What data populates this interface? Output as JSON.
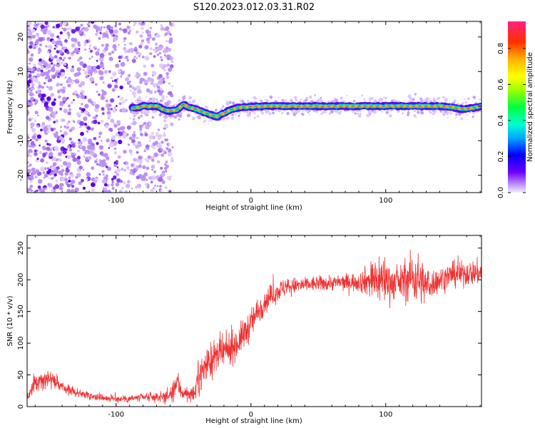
{
  "figure": {
    "title": "S120.2023.012.03.31.R02"
  },
  "chart_data": [
    {
      "type": "heatmap",
      "xlabel": "Height of straight line (km)",
      "ylabel": "Frequency (Hz)",
      "xlim": [
        -166,
        171
      ],
      "ylim": [
        -25,
        24.5
      ],
      "xticks": [
        -100,
        0,
        100
      ],
      "yticks": [
        -20,
        -10,
        0,
        10,
        20
      ],
      "grid": false,
      "trace": {
        "x": [
          -85,
          -80,
          -75,
          -70,
          -65,
          -60,
          -55,
          -50,
          -45,
          -40,
          -35,
          -30,
          -25,
          -20,
          -15,
          -10,
          -5,
          0,
          10,
          20,
          40,
          60,
          80,
          100,
          120,
          140,
          150,
          155,
          160,
          165,
          171
        ],
        "y": [
          -0.5,
          0,
          0,
          0,
          -1,
          -1.5,
          -1,
          0.5,
          -0.5,
          -1,
          -1.8,
          -2.5,
          -3,
          -2,
          -1,
          -0.5,
          -0.3,
          -0.2,
          0,
          0,
          0,
          0,
          0,
          0,
          0,
          0,
          -0.3,
          -0.8,
          -0.8,
          -0.5,
          0
        ]
      },
      "colorbar": {
        "label": "Normalized spectral amplitude",
        "range": [
          0,
          0.95
        ],
        "ticks": [
          0.0,
          0.2,
          0.4,
          0.6,
          0.8
        ]
      }
    },
    {
      "type": "line",
      "xlabel": "Height of straight line (km)",
      "ylabel": "SNR (10 * v/v)",
      "xlim": [
        -166,
        171
      ],
      "ylim": [
        0,
        270
      ],
      "xticks": [
        -100,
        0,
        100
      ],
      "yticks": [
        0,
        50,
        100,
        150,
        200,
        250
      ],
      "grid": false,
      "color": "#ee3333",
      "series": [
        {
          "envelope": {
            "x": [
              -166,
              -160,
              -155,
              -150,
              -145,
              -140,
              -130,
              -120,
              -110,
              -100,
              -90,
              -80,
              -70,
              -62,
              -58,
              -55,
              -52,
              -48,
              -45,
              -42,
              -40,
              -35,
              -32,
              -30,
              -25,
              -20,
              -15,
              -10,
              -5,
              0,
              5,
              10,
              15,
              20,
              25,
              30,
              40,
              50,
              60,
              70,
              80,
              85,
              90,
              95,
              100,
              105,
              110,
              115,
              120,
              125,
              130,
              135,
              140,
              145,
              150,
              160,
              171
            ],
            "mean": [
              15,
              35,
              42,
              45,
              40,
              30,
              22,
              18,
              14,
              12,
              13,
              14,
              15,
              16,
              20,
              40,
              25,
              20,
              18,
              18,
              40,
              60,
              70,
              72,
              80,
              85,
              92,
              100,
              115,
              130,
              150,
              165,
              175,
              182,
              188,
              190,
              192,
              194,
              195,
              196,
              197,
              198,
              200,
              202,
              200,
              195,
              195,
              200,
              205,
              200,
              190,
              195,
              200,
              205,
              208,
              210,
              212
            ],
            "spread": [
              8,
              12,
              12,
              12,
              10,
              8,
              6,
              6,
              5,
              5,
              6,
              6,
              7,
              10,
              14,
              20,
              14,
              10,
              8,
              10,
              22,
              24,
              25,
              25,
              25,
              24,
              22,
              22,
              22,
              22,
              20,
              18,
              16,
              15,
              14,
              12,
              11,
              11,
              11,
              12,
              14,
              20,
              30,
              38,
              35,
              25,
              22,
              30,
              38,
              36,
              26,
              20,
              18,
              18,
              18,
              18,
              18
            ]
          }
        }
      ]
    }
  ]
}
